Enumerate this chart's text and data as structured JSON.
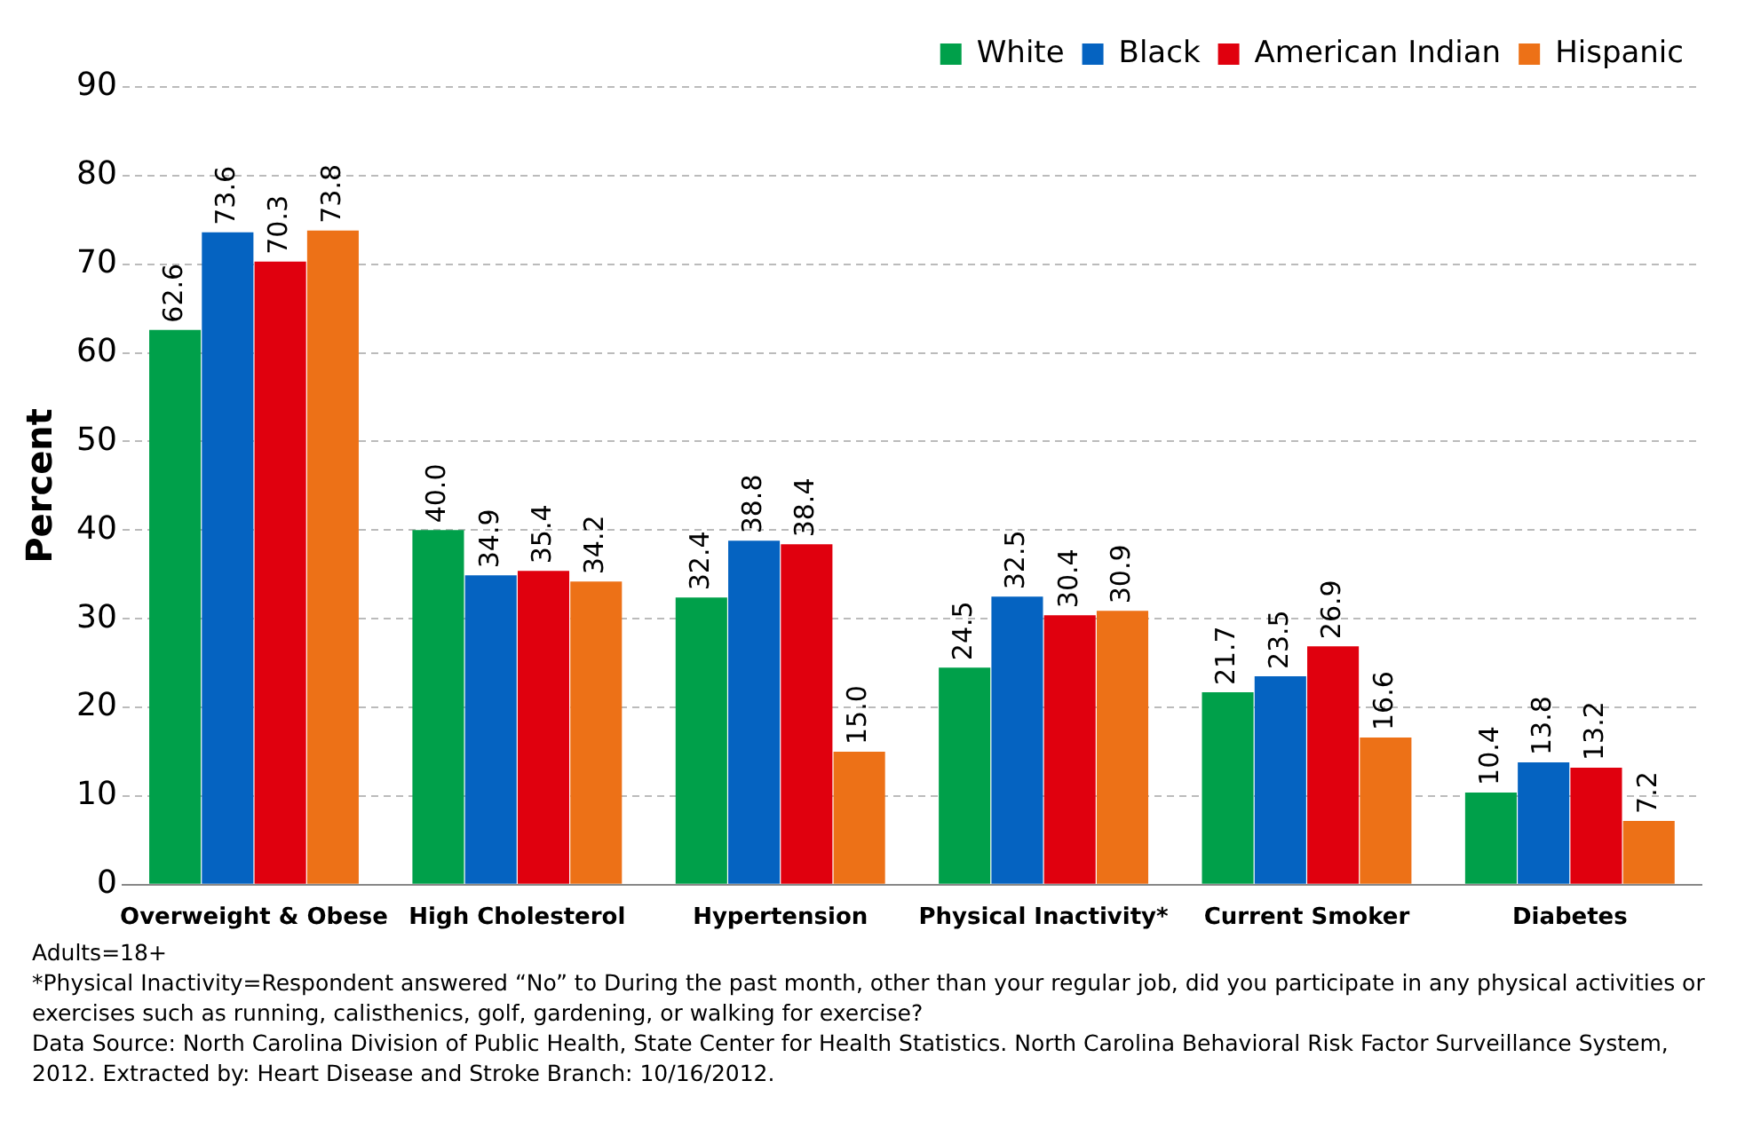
{
  "chart_data": {
    "type": "bar",
    "ylabel": "Percent",
    "categories": [
      "Overweight & Obese",
      "High Cholesterol",
      "Hypertension",
      "Physical Inactivity*",
      "Current Smoker",
      "Diabetes"
    ],
    "series": [
      {
        "name": "White",
        "color": "#00a04a",
        "values": [
          62.6,
          40,
          32.4,
          24.5,
          21.7,
          10.4
        ],
        "value_labels": [
          "62.6",
          "40.0",
          "32.4",
          "24.5",
          "21.7",
          "10.4"
        ]
      },
      {
        "name": "Black",
        "color": "#0563c1",
        "values": [
          73.6,
          34.9,
          38.8,
          32.5,
          23.5,
          13.8
        ],
        "value_labels": [
          "73.6",
          "34.9",
          "38.8",
          "32.5",
          "23.5",
          "13.8"
        ]
      },
      {
        "name": "American Indian",
        "color": "#e0000e",
        "values": [
          70.3,
          35.4,
          38.4,
          30.4,
          26.9,
          13.2
        ],
        "value_labels": [
          "70.3",
          "35.4",
          "38.4",
          "30.4",
          "26.9",
          "13.2"
        ]
      },
      {
        "name": "Hispanic",
        "color": "#ed7117",
        "values": [
          73.8,
          34.2,
          15,
          30.9,
          16.6,
          7.2
        ],
        "value_labels": [
          "73.8",
          "34.2",
          "15.0",
          "30.9",
          "16.6",
          "7.2"
        ]
      }
    ],
    "ylim": [
      0,
      90
    ],
    "yticks": [
      0,
      10,
      20,
      30,
      40,
      50,
      60,
      70,
      80,
      90
    ],
    "grid": "y",
    "legend": "top right",
    "annotations": [
      "Adults=18+",
      "*Physical Inactivity=Respondent answered “No” to During the past month, other than your regular job, did you participate in any physical activities or exercises such as running, calisthenics, golf, gardening, or walking for exercise?",
      "Data Source: North Carolina Division of Public Health, State Center for Health Statistics. North Carolina Behavioral Risk Factor Surveillance System, 2012. Extracted by: Heart Disease and Stroke Branch: 10/16/2012."
    ]
  }
}
